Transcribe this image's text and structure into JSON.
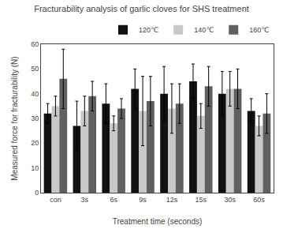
{
  "chart_data": {
    "type": "bar",
    "title": "Fracturability analysis of garlic cloves for SHS treatment",
    "xlabel": "Treatment time (seconds)",
    "ylabel": "Measured force for fracturability (N)",
    "categories": [
      "con",
      "3s",
      "6s",
      "9s",
      "12s",
      "15s",
      "30s",
      "60s"
    ],
    "series": [
      {
        "name": "120℃",
        "color": "#111111",
        "values": [
          32,
          27,
          36,
          42,
          40,
          45,
          40,
          33
        ],
        "errors": [
          4,
          10,
          8,
          8,
          11,
          7,
          9,
          5
        ]
      },
      {
        "name": "140℃",
        "color": "#c8c8c8",
        "values": [
          35,
          33,
          28,
          33,
          34,
          31,
          42,
          27
        ],
        "errors": [
          4,
          6,
          3,
          14,
          10,
          5,
          7,
          4
        ]
      },
      {
        "name": "160℃",
        "color": "#606060",
        "values": [
          46,
          39,
          34,
          37,
          36,
          43,
          42,
          32
        ],
        "errors": [
          12,
          6,
          4,
          10,
          8,
          8,
          8,
          8
        ]
      }
    ],
    "ylim": [
      0,
      60
    ],
    "yticks": [
      0,
      10,
      20,
      30,
      40,
      50,
      60
    ],
    "grid": false,
    "legend": "upper right"
  }
}
